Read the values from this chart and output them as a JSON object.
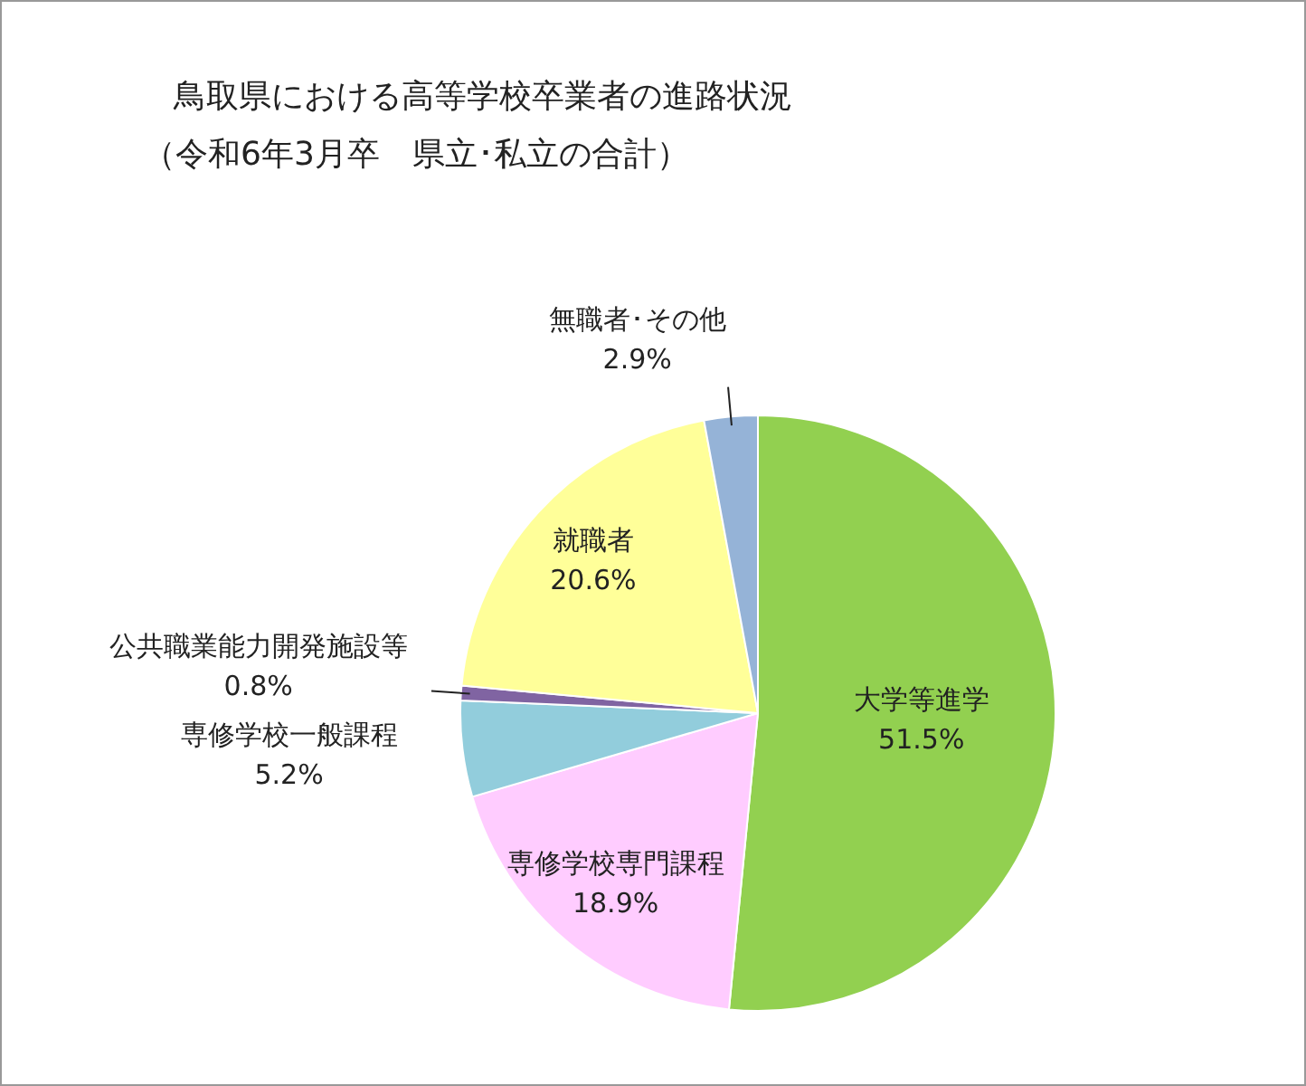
{
  "chart_data": {
    "type": "pie",
    "title": "鳥取県における高等学校卒業者の進路状況",
    "subtitle": "（令和6年3月卒　県立･私立の合計）",
    "categories": [
      "大学等進学",
      "専修学校専門課程",
      "専修学校一般課程",
      "公共職業能力開発施設等",
      "就職者",
      "無職者･その他"
    ],
    "values": [
      51.5,
      18.9,
      5.2,
      0.8,
      20.6,
      2.9
    ],
    "value_labels": [
      "51.5%",
      "18.9%",
      "5.2%",
      "0.8%",
      "20.6%",
      "2.9%"
    ],
    "colors": [
      "#92d050",
      "#ffccff",
      "#92cddc",
      "#8064a2",
      "#ffff99",
      "#95b3d7"
    ],
    "legend": false
  }
}
